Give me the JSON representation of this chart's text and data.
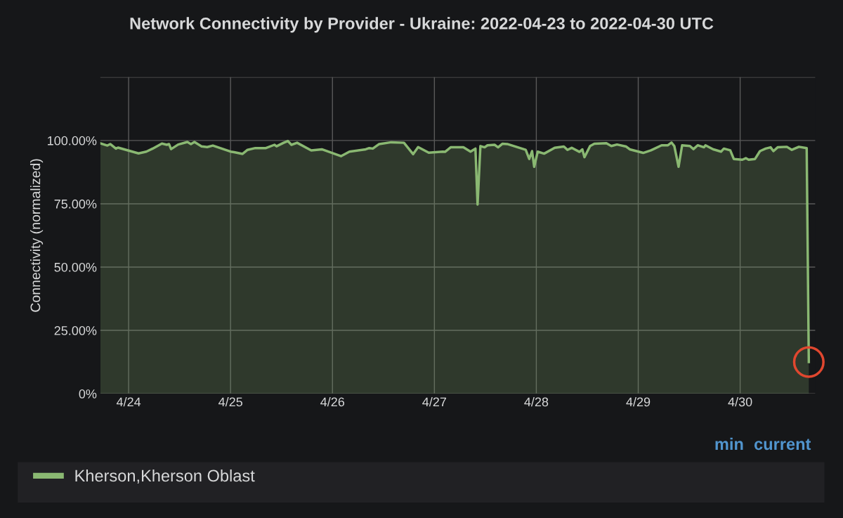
{
  "chart_data": {
    "type": "area",
    "title": "Network Connectivity by Provider - Ukraine: 2022-04-23 to 2022-04-30 UTC",
    "ylabel": "Connectivity (normalized)",
    "annotations": [
      "min",
      "current"
    ],
    "x": [
      "2022-04-23T17:20",
      "2022-04-23T19:00",
      "2022-04-23T19:40",
      "2022-04-23T21:00",
      "2022-04-23T21:30",
      "2022-04-24T02:20",
      "2022-04-24T04:10",
      "2022-04-24T05:40",
      "2022-04-24T07:50",
      "2022-04-24T09:00",
      "2022-04-24T09:30",
      "2022-04-24T10:00",
      "2022-04-24T11:40",
      "2022-04-24T13:50",
      "2022-04-24T14:40",
      "2022-04-24T15:30",
      "2022-04-24T17:10",
      "2022-04-24T18:30",
      "2022-04-24T19:50",
      "2022-04-25T00:00",
      "2022-04-25T00:50",
      "2022-04-25T02:50",
      "2022-04-25T04:00",
      "2022-04-25T05:50",
      "2022-04-25T08:20",
      "2022-04-25T10:20",
      "2022-04-25T10:50",
      "2022-04-25T12:30",
      "2022-04-25T13:30",
      "2022-04-25T14:20",
      "2022-04-25T15:40",
      "2022-04-25T19:00",
      "2022-04-25T21:30",
      "2022-04-26T02:00",
      "2022-04-26T04:00",
      "2022-04-26T07:50",
      "2022-04-26T08:40",
      "2022-04-26T09:30",
      "2022-04-26T11:00",
      "2022-04-26T13:50",
      "2022-04-26T16:50",
      "2022-04-26T19:00",
      "2022-04-26T20:10",
      "2022-04-26T22:40",
      "2022-04-27T02:00",
      "2022-04-27T02:30",
      "2022-04-27T03:50",
      "2022-04-27T06:50",
      "2022-04-27T08:30",
      "2022-04-27T09:40",
      "2022-04-27T10:10",
      "2022-04-27T10:50",
      "2022-04-27T11:50",
      "2022-04-27T12:30",
      "2022-04-27T14:10",
      "2022-04-27T15:00",
      "2022-04-27T16:00",
      "2022-04-27T17:10",
      "2022-04-27T21:30",
      "2022-04-27T22:20",
      "2022-04-27T23:00",
      "2022-04-27T23:30",
      "2022-04-28T00:20",
      "2022-04-28T01:50",
      "2022-04-28T04:20",
      "2022-04-28T06:30",
      "2022-04-28T07:20",
      "2022-04-28T08:20",
      "2022-04-28T10:10",
      "2022-04-28T10:50",
      "2022-04-28T11:20",
      "2022-04-28T12:40",
      "2022-04-28T13:40",
      "2022-04-28T16:30",
      "2022-04-28T17:40",
      "2022-04-28T19:00",
      "2022-04-28T21:10",
      "2022-04-28T22:00",
      "2022-04-29T01:10",
      "2022-04-29T03:00",
      "2022-04-29T05:30",
      "2022-04-29T07:00",
      "2022-04-29T07:50",
      "2022-04-29T08:30",
      "2022-04-29T09:30",
      "2022-04-29T10:20",
      "2022-04-29T12:10",
      "2022-04-29T13:00",
      "2022-04-29T14:00",
      "2022-04-29T15:30",
      "2022-04-29T15:50",
      "2022-04-29T17:40",
      "2022-04-29T19:30",
      "2022-04-29T20:10",
      "2022-04-29T21:40",
      "2022-04-29T22:30",
      "2022-04-30T00:30",
      "2022-04-30T01:20",
      "2022-04-30T02:00",
      "2022-04-30T03:30",
      "2022-04-30T04:40",
      "2022-04-30T06:00",
      "2022-04-30T07:10",
      "2022-04-30T07:50",
      "2022-04-30T08:50",
      "2022-04-30T11:00",
      "2022-04-30T12:10",
      "2022-04-30T13:50",
      "2022-04-30T15:40",
      "2022-04-30T16:10"
    ],
    "series": [
      {
        "name": "Kherson,Kherson Oblast",
        "color": "#8ab872",
        "values": [
          98.9,
          98.0,
          98.6,
          96.8,
          97.2,
          94.9,
          95.6,
          96.8,
          98.8,
          98.3,
          98.6,
          96.6,
          98.4,
          99.4,
          98.6,
          99.4,
          97.7,
          97.4,
          98.0,
          95.6,
          95.4,
          94.7,
          96.3,
          97.0,
          97.0,
          98.3,
          97.7,
          99.1,
          99.8,
          98.3,
          99.1,
          96.1,
          96.5,
          93.8,
          95.6,
          96.5,
          97.0,
          96.8,
          98.6,
          99.3,
          99.1,
          94.6,
          97.4,
          95.2,
          95.6,
          95.5,
          97.3,
          97.3,
          95.6,
          96.8,
          74.7,
          97.8,
          97.3,
          98.1,
          98.3,
          97.3,
          98.7,
          98.6,
          96.3,
          92.7,
          95.8,
          89.6,
          95.6,
          94.8,
          97.1,
          97.6,
          96.3,
          97.1,
          95.5,
          96.5,
          93.4,
          97.8,
          98.7,
          98.9,
          97.8,
          98.4,
          97.6,
          96.5,
          95.1,
          96.1,
          98.1,
          98.1,
          99.2,
          97.8,
          89.6,
          98.1,
          97.8,
          96.6,
          98.1,
          97.3,
          98.1,
          96.5,
          95.6,
          96.8,
          96.1,
          92.7,
          92.4,
          93.0,
          92.4,
          92.7,
          95.8,
          96.8,
          97.3,
          95.8,
          97.3,
          97.5,
          96.3,
          97.5,
          97.0,
          12.5
        ]
      }
    ],
    "xlim": [
      "2022-04-23T17:20",
      "2022-04-30T17:40"
    ],
    "xticks": [
      {
        "value": "2022-04-24",
        "label": "4/24"
      },
      {
        "value": "2022-04-25",
        "label": "4/25"
      },
      {
        "value": "2022-04-26",
        "label": "4/26"
      },
      {
        "value": "2022-04-27",
        "label": "4/27"
      },
      {
        "value": "2022-04-28",
        "label": "4/28"
      },
      {
        "value": "2022-04-29",
        "label": "4/29"
      },
      {
        "value": "2022-04-30",
        "label": "4/30"
      }
    ],
    "ylim": [
      0,
      125
    ],
    "yticks": [
      {
        "value": 0,
        "label": "0%"
      },
      {
        "value": 25,
        "label": "25.00%"
      },
      {
        "value": 50,
        "label": "50.00%"
      },
      {
        "value": 75,
        "label": "75.00%"
      },
      {
        "value": 100,
        "label": "100.00%"
      },
      {
        "value": 125,
        "label": null
      }
    ],
    "grid": true,
    "legend": "bottom"
  }
}
